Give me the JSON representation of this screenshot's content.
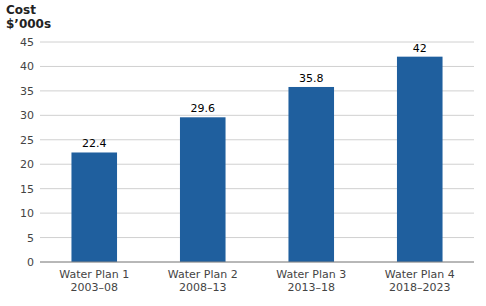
{
  "chart_data": {
    "type": "bar",
    "ylabel": "Cost\n$’000s",
    "categories": [
      "Water Plan 1\n2003–08",
      "Water Plan 2\n2008–13",
      "Water Plan 3\n2013–18",
      "Water Plan 4\n2018–2023"
    ],
    "values": [
      22.4,
      29.6,
      35.8,
      42
    ],
    "color": "#1F5F9E",
    "ylim": [
      0,
      45
    ],
    "yticks": [
      0,
      5,
      10,
      15,
      20,
      25,
      30,
      35,
      40,
      45
    ],
    "grid": true,
    "data_labels": true
  }
}
